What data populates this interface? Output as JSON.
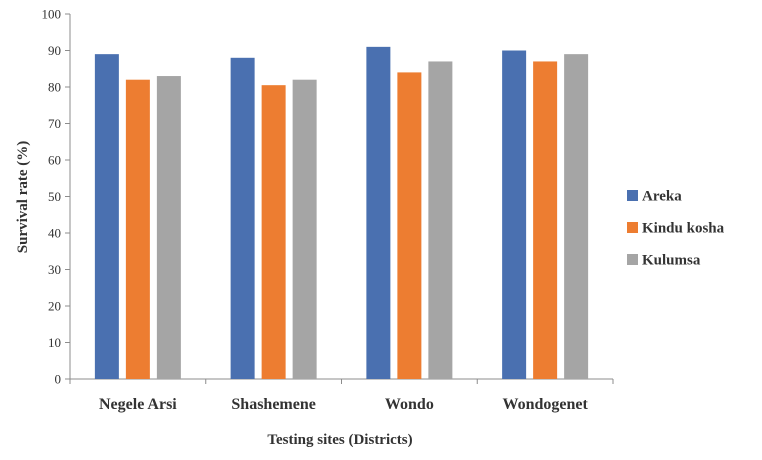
{
  "chart_data": {
    "type": "bar",
    "xlabel": "Testing sites (Districts)",
    "ylabel": "Survival rate (%)",
    "ylim": [
      0,
      100
    ],
    "yticks": [
      0,
      10,
      20,
      30,
      40,
      50,
      60,
      70,
      80,
      90,
      100
    ],
    "categories": [
      "Negele Arsi",
      "Shashemene",
      "Wondo",
      "Wondogenet"
    ],
    "series": [
      {
        "name": "Areka",
        "color": "#4a70b0",
        "values": [
          89,
          88,
          91,
          90
        ]
      },
      {
        "name": "Kindu kosha",
        "color": "#ed7d31",
        "values": [
          82,
          80.5,
          84,
          87
        ]
      },
      {
        "name": "Kulumsa",
        "color": "#a5a5a5",
        "values": [
          83,
          82,
          87,
          89
        ]
      }
    ],
    "legend_position": "right",
    "grid": false
  }
}
